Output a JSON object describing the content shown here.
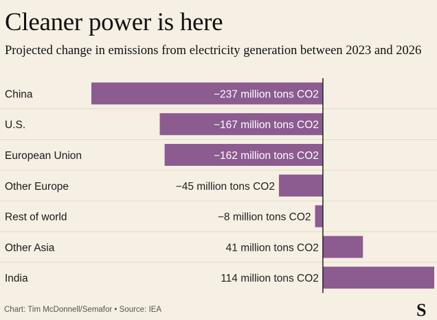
{
  "title": "Cleaner power is here",
  "subtitle": "Projected change in emissions from electricity generation between 2023 and 2026",
  "footer": "Chart: Tim McDonnell/Semafor • Source: IEA",
  "logo": "S",
  "colors": {
    "bar": "#8c5b90",
    "background": "#f6efe3",
    "row_divider": "#e3d9c8",
    "axis": "#222222",
    "inside_label": "#ffffff",
    "outside_label": "#222222"
  },
  "chart_data": {
    "type": "bar",
    "orientation": "horizontal",
    "unit": "million tons CO2",
    "categories": [
      "China",
      "U.S.",
      "European Union",
      "Other Europe",
      "Rest of world",
      "Other Asia",
      "India"
    ],
    "values": [
      -237,
      -167,
      -162,
      -45,
      -8,
      41,
      114
    ],
    "value_labels": [
      "−237 million tons CO2",
      "−167 million tons CO2",
      "−162 million tons CO2",
      "−45 million tons CO2",
      "−8 million tons CO2",
      "41 million tons CO2",
      "114 million tons CO2"
    ],
    "xlim": [
      -237,
      114
    ],
    "grid": false,
    "legend": "none"
  }
}
